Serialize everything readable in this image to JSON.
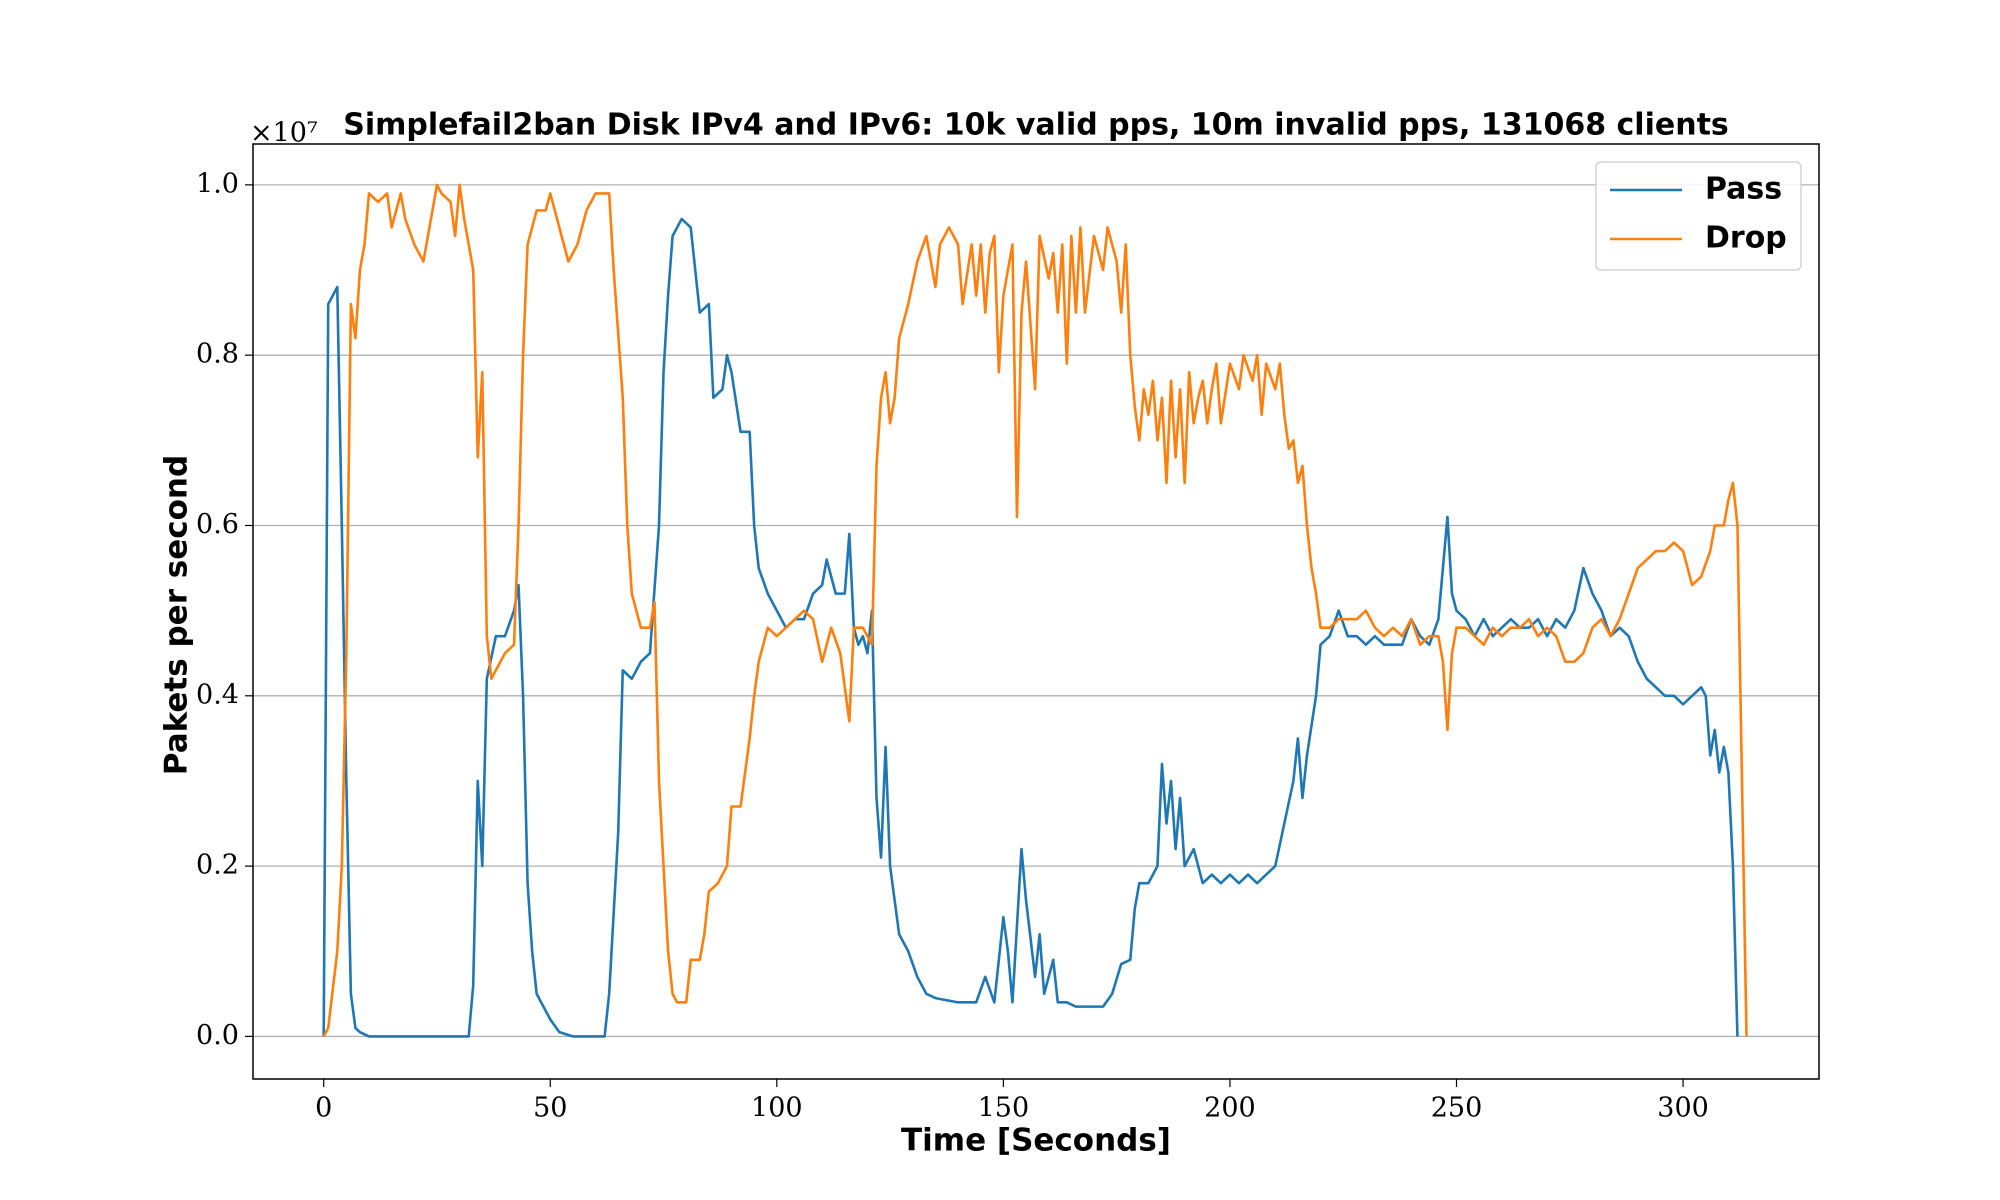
{
  "chart_data": {
    "type": "line",
    "title": "Simplefail2ban Disk IPv4 and IPv6: 10k valid pps, 10m invalid pps, 131068 clients",
    "x_label": "Time [Seconds]",
    "y_label": "Pakets per second",
    "y_offset_label": "×10⁷",
    "xlim": [
      -15.6,
      330
    ],
    "ylim": [
      -0.05,
      1.048
    ],
    "xticks": [
      0,
      50,
      100,
      150,
      200,
      250,
      300
    ],
    "yticks": [
      {
        "value": 0,
        "label": "0.0"
      },
      0.2,
      0.4,
      0.6,
      0.8,
      {
        "value": 1,
        "label": "1.0"
      }
    ],
    "grid": true,
    "legend": "upper right",
    "series": [
      {
        "name": "Pass",
        "color": "#1f77b4",
        "x": [
          0,
          1,
          2,
          3,
          4,
          5,
          6,
          7,
          8,
          10,
          32,
          33,
          34,
          35,
          36,
          38,
          40,
          42,
          43,
          44,
          45,
          46,
          47,
          50,
          52,
          55,
          62,
          63,
          65,
          66,
          68,
          70,
          72,
          74,
          75,
          76,
          77,
          79,
          81,
          83,
          85,
          86,
          88,
          89,
          90,
          92,
          94,
          95,
          96,
          98,
          100,
          102,
          104,
          106,
          108,
          110,
          111,
          113,
          115,
          116,
          117,
          118,
          119,
          120,
          121,
          122,
          123,
          124,
          125,
          127,
          129,
          131,
          133,
          135,
          140,
          144,
          146,
          148,
          150,
          151,
          152,
          154,
          155,
          157,
          158,
          159,
          161,
          162,
          164,
          166,
          168,
          170,
          172,
          174,
          176,
          178,
          179,
          180,
          182,
          184,
          185,
          186,
          187,
          188,
          189,
          190,
          192,
          194,
          196,
          198,
          200,
          202,
          204,
          206,
          208,
          210,
          212,
          214,
          215,
          216,
          217,
          219,
          220,
          222,
          224,
          226,
          228,
          230,
          232,
          234,
          236,
          238,
          240,
          242,
          244,
          246,
          248,
          249,
          250,
          252,
          254,
          256,
          258,
          260,
          262,
          264,
          266,
          268,
          270,
          272,
          274,
          276,
          278,
          280,
          282,
          284,
          286,
          288,
          290,
          292,
          294,
          296,
          298,
          300,
          302,
          304,
          305,
          306,
          307,
          308,
          309,
          310,
          311,
          312
        ],
        "values": [
          0,
          0.86,
          0.87,
          0.88,
          0.6,
          0.3,
          0.05,
          0.01,
          0.005,
          0,
          0,
          0.06,
          0.3,
          0.2,
          0.42,
          0.47,
          0.47,
          0.5,
          0.53,
          0.4,
          0.18,
          0.1,
          0.05,
          0.02,
          0.005,
          0,
          0,
          0.05,
          0.24,
          0.43,
          0.42,
          0.44,
          0.45,
          0.6,
          0.78,
          0.87,
          0.94,
          0.96,
          0.95,
          0.85,
          0.86,
          0.75,
          0.76,
          0.8,
          0.78,
          0.71,
          0.71,
          0.6,
          0.55,
          0.52,
          0.5,
          0.48,
          0.49,
          0.49,
          0.52,
          0.53,
          0.56,
          0.52,
          0.52,
          0.59,
          0.48,
          0.46,
          0.47,
          0.45,
          0.5,
          0.28,
          0.21,
          0.34,
          0.2,
          0.12,
          0.1,
          0.07,
          0.05,
          0.045,
          0.04,
          0.04,
          0.07,
          0.04,
          0.14,
          0.1,
          0.04,
          0.22,
          0.16,
          0.07,
          0.12,
          0.05,
          0.09,
          0.04,
          0.04,
          0.035,
          0.035,
          0.035,
          0.035,
          0.05,
          0.085,
          0.09,
          0.15,
          0.18,
          0.18,
          0.2,
          0.32,
          0.25,
          0.3,
          0.22,
          0.28,
          0.2,
          0.22,
          0.18,
          0.19,
          0.18,
          0.19,
          0.18,
          0.19,
          0.18,
          0.19,
          0.2,
          0.25,
          0.3,
          0.35,
          0.28,
          0.33,
          0.4,
          0.46,
          0.47,
          0.5,
          0.47,
          0.47,
          0.46,
          0.47,
          0.46,
          0.46,
          0.46,
          0.49,
          0.47,
          0.46,
          0.49,
          0.61,
          0.52,
          0.5,
          0.49,
          0.47,
          0.49,
          0.47,
          0.48,
          0.49,
          0.48,
          0.48,
          0.49,
          0.47,
          0.49,
          0.48,
          0.5,
          0.55,
          0.52,
          0.5,
          0.47,
          0.48,
          0.47,
          0.44,
          0.42,
          0.41,
          0.4,
          0.4,
          0.39,
          0.4,
          0.41,
          0.4,
          0.33,
          0.36,
          0.31,
          0.34,
          0.31,
          0.2,
          0
        ]
      },
      {
        "name": "Drop",
        "color": "#ff7f0e",
        "x": [
          0,
          1,
          3,
          4,
          5,
          6,
          7,
          8,
          9,
          10,
          12,
          14,
          15,
          17,
          18,
          20,
          22,
          24,
          25,
          26,
          28,
          29,
          30,
          31,
          32,
          33,
          34,
          35,
          36,
          37,
          38,
          40,
          42,
          43,
          44,
          45,
          47,
          49,
          50,
          51,
          53,
          54,
          56,
          58,
          60,
          62,
          63,
          64,
          66,
          67,
          68,
          69,
          70,
          72,
          73,
          74,
          75,
          76,
          77,
          78,
          80,
          81,
          83,
          84,
          85,
          87,
          89,
          90,
          92,
          94,
          95,
          96,
          98,
          100,
          102,
          104,
          106,
          108,
          110,
          112,
          114,
          116,
          117,
          119,
          121,
          122,
          123,
          124,
          125,
          126,
          127,
          129,
          131,
          133,
          135,
          136,
          138,
          140,
          141,
          143,
          144,
          145,
          146,
          147,
          148,
          149,
          150,
          152,
          153,
          154,
          155,
          157,
          158,
          160,
          161,
          162,
          163,
          164,
          165,
          166,
          167,
          168,
          170,
          172,
          173,
          175,
          176,
          177,
          178,
          179,
          180,
          181,
          182,
          183,
          184,
          185,
          186,
          187,
          188,
          189,
          190,
          191,
          192,
          193,
          194,
          195,
          196,
          197,
          198,
          200,
          202,
          203,
          205,
          206,
          207,
          208,
          210,
          211,
          212,
          213,
          214,
          215,
          216,
          217,
          218,
          219,
          220,
          222,
          224,
          226,
          228,
          230,
          232,
          234,
          236,
          238,
          240,
          242,
          244,
          246,
          247,
          248,
          249,
          250,
          252,
          254,
          256,
          258,
          260,
          262,
          264,
          266,
          268,
          270,
          272,
          274,
          276,
          278,
          280,
          282,
          284,
          286,
          288,
          290,
          292,
          294,
          296,
          298,
          300,
          302,
          304,
          306,
          307,
          309,
          310,
          311,
          312,
          313,
          314
        ],
        "values": [
          0,
          0.01,
          0.1,
          0.2,
          0.45,
          0.86,
          0.82,
          0.9,
          0.93,
          0.99,
          0.98,
          0.99,
          0.95,
          0.99,
          0.96,
          0.93,
          0.91,
          0.97,
          1.0,
          0.99,
          0.98,
          0.94,
          1.0,
          0.96,
          0.93,
          0.9,
          0.68,
          0.78,
          0.47,
          0.42,
          0.43,
          0.45,
          0.46,
          0.6,
          0.8,
          0.93,
          0.97,
          0.97,
          0.99,
          0.97,
          0.93,
          0.91,
          0.93,
          0.97,
          0.99,
          0.99,
          0.99,
          0.9,
          0.75,
          0.6,
          0.52,
          0.5,
          0.48,
          0.48,
          0.51,
          0.3,
          0.2,
          0.1,
          0.05,
          0.04,
          0.04,
          0.09,
          0.09,
          0.12,
          0.17,
          0.18,
          0.2,
          0.27,
          0.27,
          0.35,
          0.4,
          0.44,
          0.48,
          0.47,
          0.48,
          0.49,
          0.5,
          0.49,
          0.44,
          0.48,
          0.45,
          0.37,
          0.48,
          0.48,
          0.46,
          0.67,
          0.75,
          0.78,
          0.72,
          0.75,
          0.82,
          0.86,
          0.91,
          0.94,
          0.88,
          0.93,
          0.95,
          0.93,
          0.86,
          0.93,
          0.87,
          0.93,
          0.85,
          0.92,
          0.94,
          0.78,
          0.87,
          0.93,
          0.61,
          0.85,
          0.91,
          0.76,
          0.94,
          0.89,
          0.92,
          0.85,
          0.93,
          0.79,
          0.94,
          0.85,
          0.95,
          0.85,
          0.94,
          0.9,
          0.95,
          0.91,
          0.85,
          0.93,
          0.8,
          0.74,
          0.7,
          0.76,
          0.73,
          0.77,
          0.7,
          0.75,
          0.65,
          0.77,
          0.68,
          0.76,
          0.65,
          0.78,
          0.72,
          0.75,
          0.77,
          0.72,
          0.76,
          0.79,
          0.72,
          0.79,
          0.76,
          0.8,
          0.77,
          0.8,
          0.73,
          0.79,
          0.76,
          0.79,
          0.73,
          0.69,
          0.7,
          0.65,
          0.67,
          0.6,
          0.55,
          0.52,
          0.48,
          0.48,
          0.49,
          0.49,
          0.49,
          0.5,
          0.48,
          0.47,
          0.48,
          0.47,
          0.49,
          0.46,
          0.47,
          0.47,
          0.44,
          0.36,
          0.45,
          0.48,
          0.48,
          0.47,
          0.46,
          0.48,
          0.47,
          0.48,
          0.48,
          0.49,
          0.47,
          0.48,
          0.47,
          0.44,
          0.44,
          0.45,
          0.48,
          0.49,
          0.47,
          0.49,
          0.52,
          0.55,
          0.56,
          0.57,
          0.57,
          0.58,
          0.57,
          0.53,
          0.54,
          0.57,
          0.6,
          0.6,
          0.63,
          0.65,
          0.6,
          0.3,
          0
        ]
      }
    ]
  }
}
